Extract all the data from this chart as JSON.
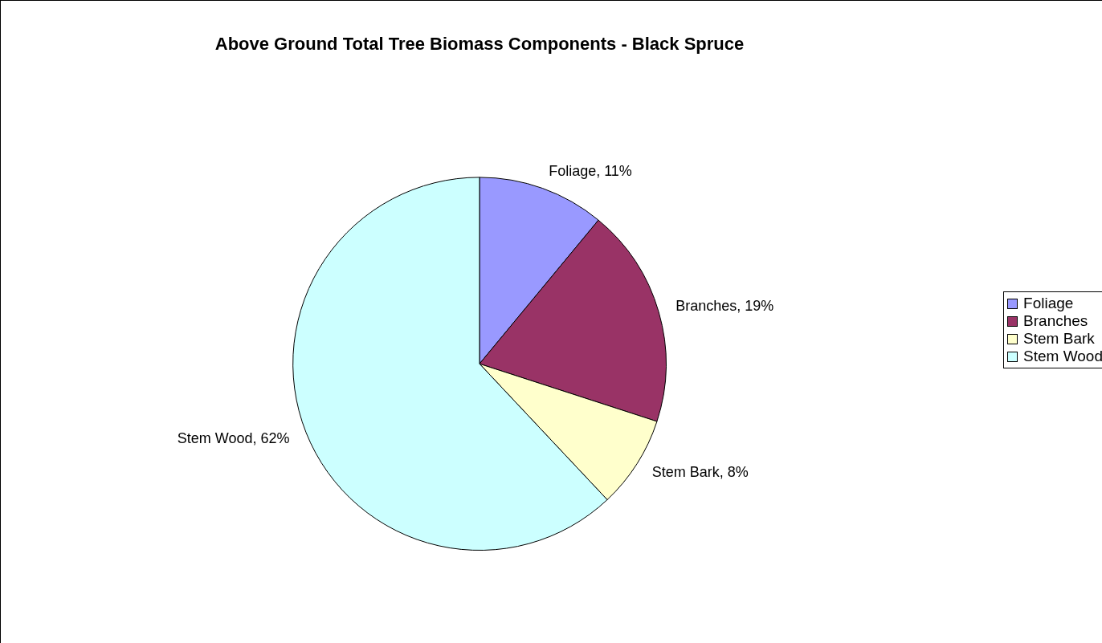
{
  "chart_data": {
    "type": "pie",
    "title": "Above Ground Total Tree Biomass Components - Black Spruce",
    "categories": [
      "Foliage",
      "Branches",
      "Stem Bark",
      "Stem Wood"
    ],
    "values": [
      11,
      19,
      8,
      62
    ],
    "colors": [
      "#9999ff",
      "#993366",
      "#ffffcc",
      "#ccffff"
    ],
    "value_labels": [
      "Foliage, 11%",
      "Branches, 19%",
      "Stem Bark, 8%",
      "Stem Wood, 62%"
    ],
    "legend": "right"
  }
}
